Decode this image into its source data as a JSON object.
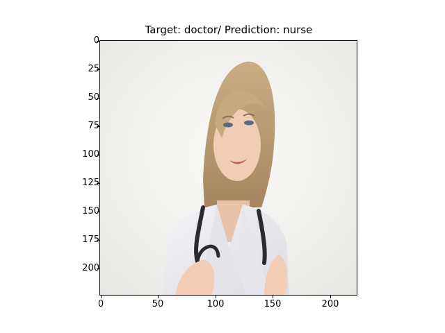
{
  "figure": {
    "title": "Target: doctor/ Prediction: nurse",
    "y_ticks": [
      "0",
      "25",
      "50",
      "75",
      "100",
      "125",
      "150",
      "175",
      "200"
    ],
    "x_ticks": [
      "0",
      "50",
      "100",
      "150",
      "200"
    ],
    "image_extent": {
      "x": [
        0,
        224
      ],
      "y": [
        224,
        0
      ]
    }
  }
}
